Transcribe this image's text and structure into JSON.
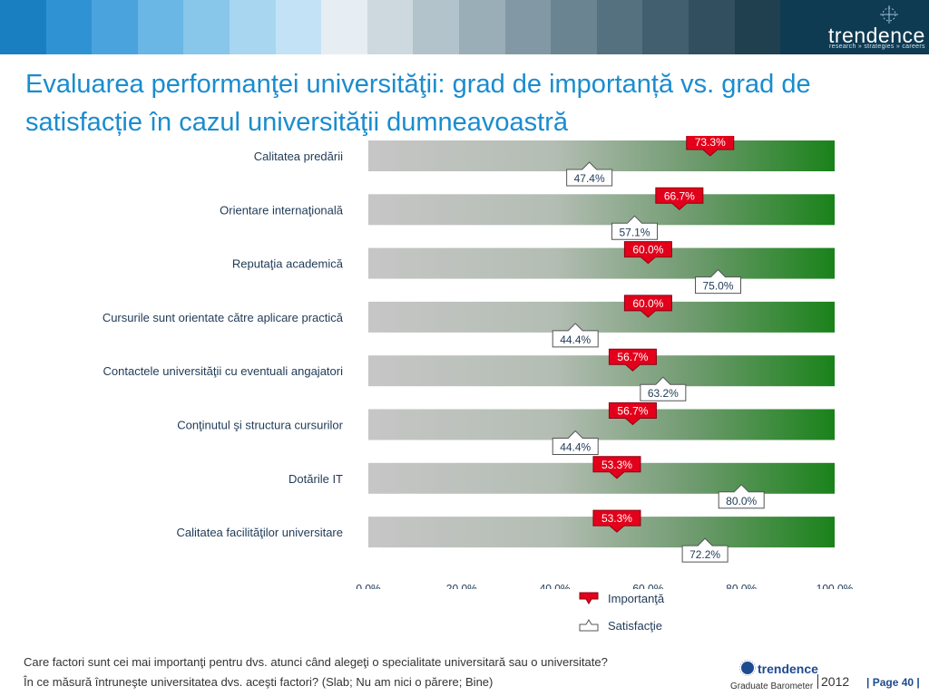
{
  "header": {
    "stripe_colors": [
      "#1a7fc1",
      "#2f93d3",
      "#4aa3dc",
      "#6ab6e4",
      "#88c6ea",
      "#a8d6f0",
      "#c3e2f5",
      "#e6eef3",
      "#cdd9df",
      "#b3c3cb",
      "#9aaeb8",
      "#8298a4",
      "#6b8491",
      "#557180",
      "#425f6f",
      "#324f60",
      "#21404f"
    ],
    "brand_name": "trendence",
    "brand_tagline": "research » strategies » careers"
  },
  "title": "Evaluarea performanţei universităţii: grad de importanță vs. grad de satisfacție în cazul universităţii dumneavoastră",
  "chart_data": {
    "type": "bar",
    "orientation": "horizontal",
    "categories": [
      "Calitatea predării",
      "Orientare internaţională",
      "Reputaţia academică",
      "Cursurile sunt orientate către aplicare practică",
      "Contactele universităţii cu eventuali angajatori",
      "Conţinutul şi structura cursurilor",
      "Dotările IT",
      "Calitatea facilităţilor universitare"
    ],
    "series": [
      {
        "name": "Importanţă",
        "marker": "red-downward-flag",
        "values": [
          73.3,
          66.7,
          60.0,
          60.0,
          56.7,
          56.7,
          53.3,
          53.3
        ],
        "labels": [
          "73.3%",
          "66.7%",
          "60.0%",
          "60.0%",
          "56.7%",
          "56.7%",
          "53.3%",
          "53.3%"
        ]
      },
      {
        "name": "Satisfacţie",
        "marker": "white-upward-flag",
        "values": [
          47.4,
          57.1,
          75.0,
          44.4,
          63.2,
          44.4,
          80.0,
          72.2
        ],
        "labels": [
          "47.4%",
          "57.1%",
          "75.0%",
          "44.4%",
          "63.2%",
          "44.4%",
          "80.0%",
          "72.2%"
        ]
      }
    ],
    "xlim": [
      0,
      100
    ],
    "xticks": [
      "0.0%",
      "20.0%",
      "40.0%",
      "60.0%",
      "80.0%",
      "100.0%"
    ],
    "background_bar": "gradient grey to green (0% to 100%)",
    "colors": {
      "importance": "#e3001b",
      "satisfaction": "#ffffff",
      "bar_start": "#c6c6c6",
      "bar_mid": "#9fb59f",
      "bar_end": "#1a821a",
      "label_text": "#1f3a56"
    }
  },
  "legend": {
    "importance_label": "Importanţă",
    "satisfaction_label": "Satisfacţie"
  },
  "footer": {
    "question_1": "Care factori sunt cei mai importanţi pentru dvs. atunci când alegeţi o specialitate universitară sau o universitate?",
    "question_2": "În ce măsură întruneşte universitatea dvs. aceşti factori? (Slab; Nu am nici o părere; Bine)",
    "logo_name": "trendence",
    "logo_sub": "Graduate Barometer",
    "logo_year": "2012",
    "page_number": "| Page 40 |"
  }
}
